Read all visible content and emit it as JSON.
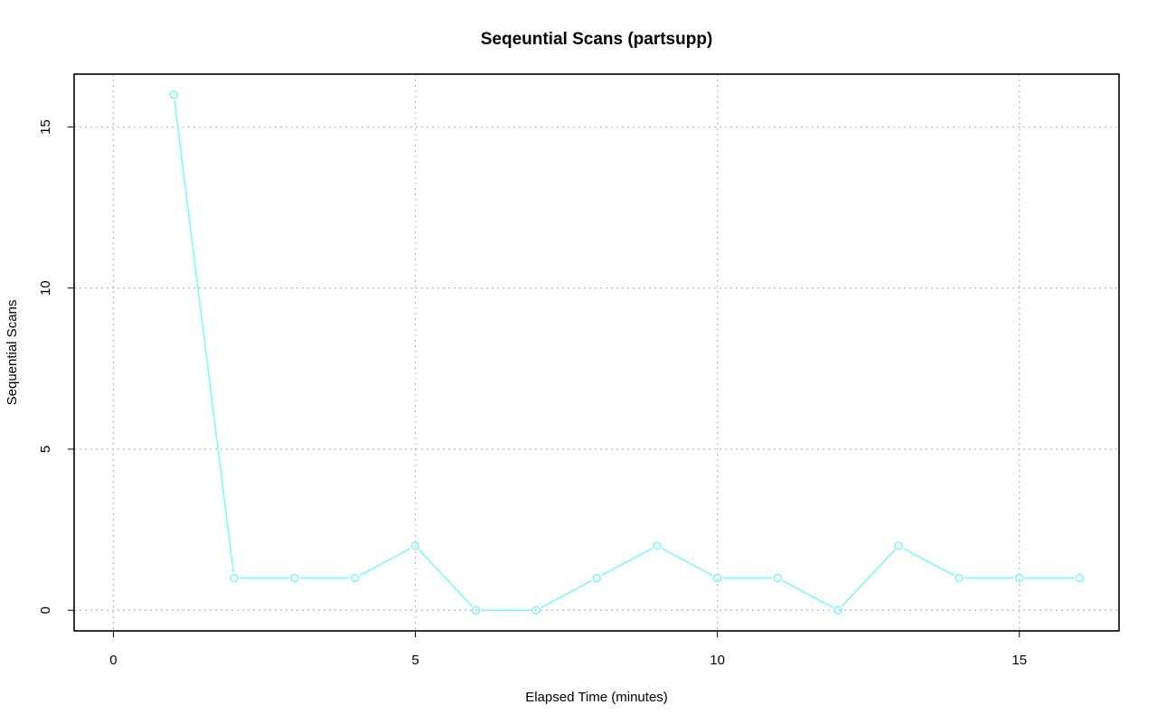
{
  "colors": {
    "background": "#ffffff",
    "series": "#7ff7f7",
    "grid": "#bdbdbd",
    "frame": "#000000"
  },
  "chart_data": {
    "type": "line",
    "title": "Seqeuntial Scans (partsupp)",
    "xlabel": "Elapsed Time (minutes)",
    "ylabel": "Sequential Scans",
    "xlim": [
      -0.65,
      16.65
    ],
    "ylim": [
      -0.64,
      16.64
    ],
    "x_ticks": [
      0,
      5,
      10,
      15
    ],
    "y_ticks": [
      0,
      5,
      10,
      15
    ],
    "grid": true,
    "legend": "none",
    "markers": "open-circle",
    "series": [
      {
        "color": "#7ff7f7",
        "x": [
          1,
          2,
          3,
          4,
          5,
          6,
          7,
          8,
          9,
          10,
          11,
          12,
          13,
          14,
          15,
          16
        ],
        "values": [
          16,
          1,
          1,
          1,
          2,
          0,
          0,
          1,
          2,
          1,
          1,
          0,
          2,
          1,
          1,
          1
        ]
      }
    ]
  }
}
